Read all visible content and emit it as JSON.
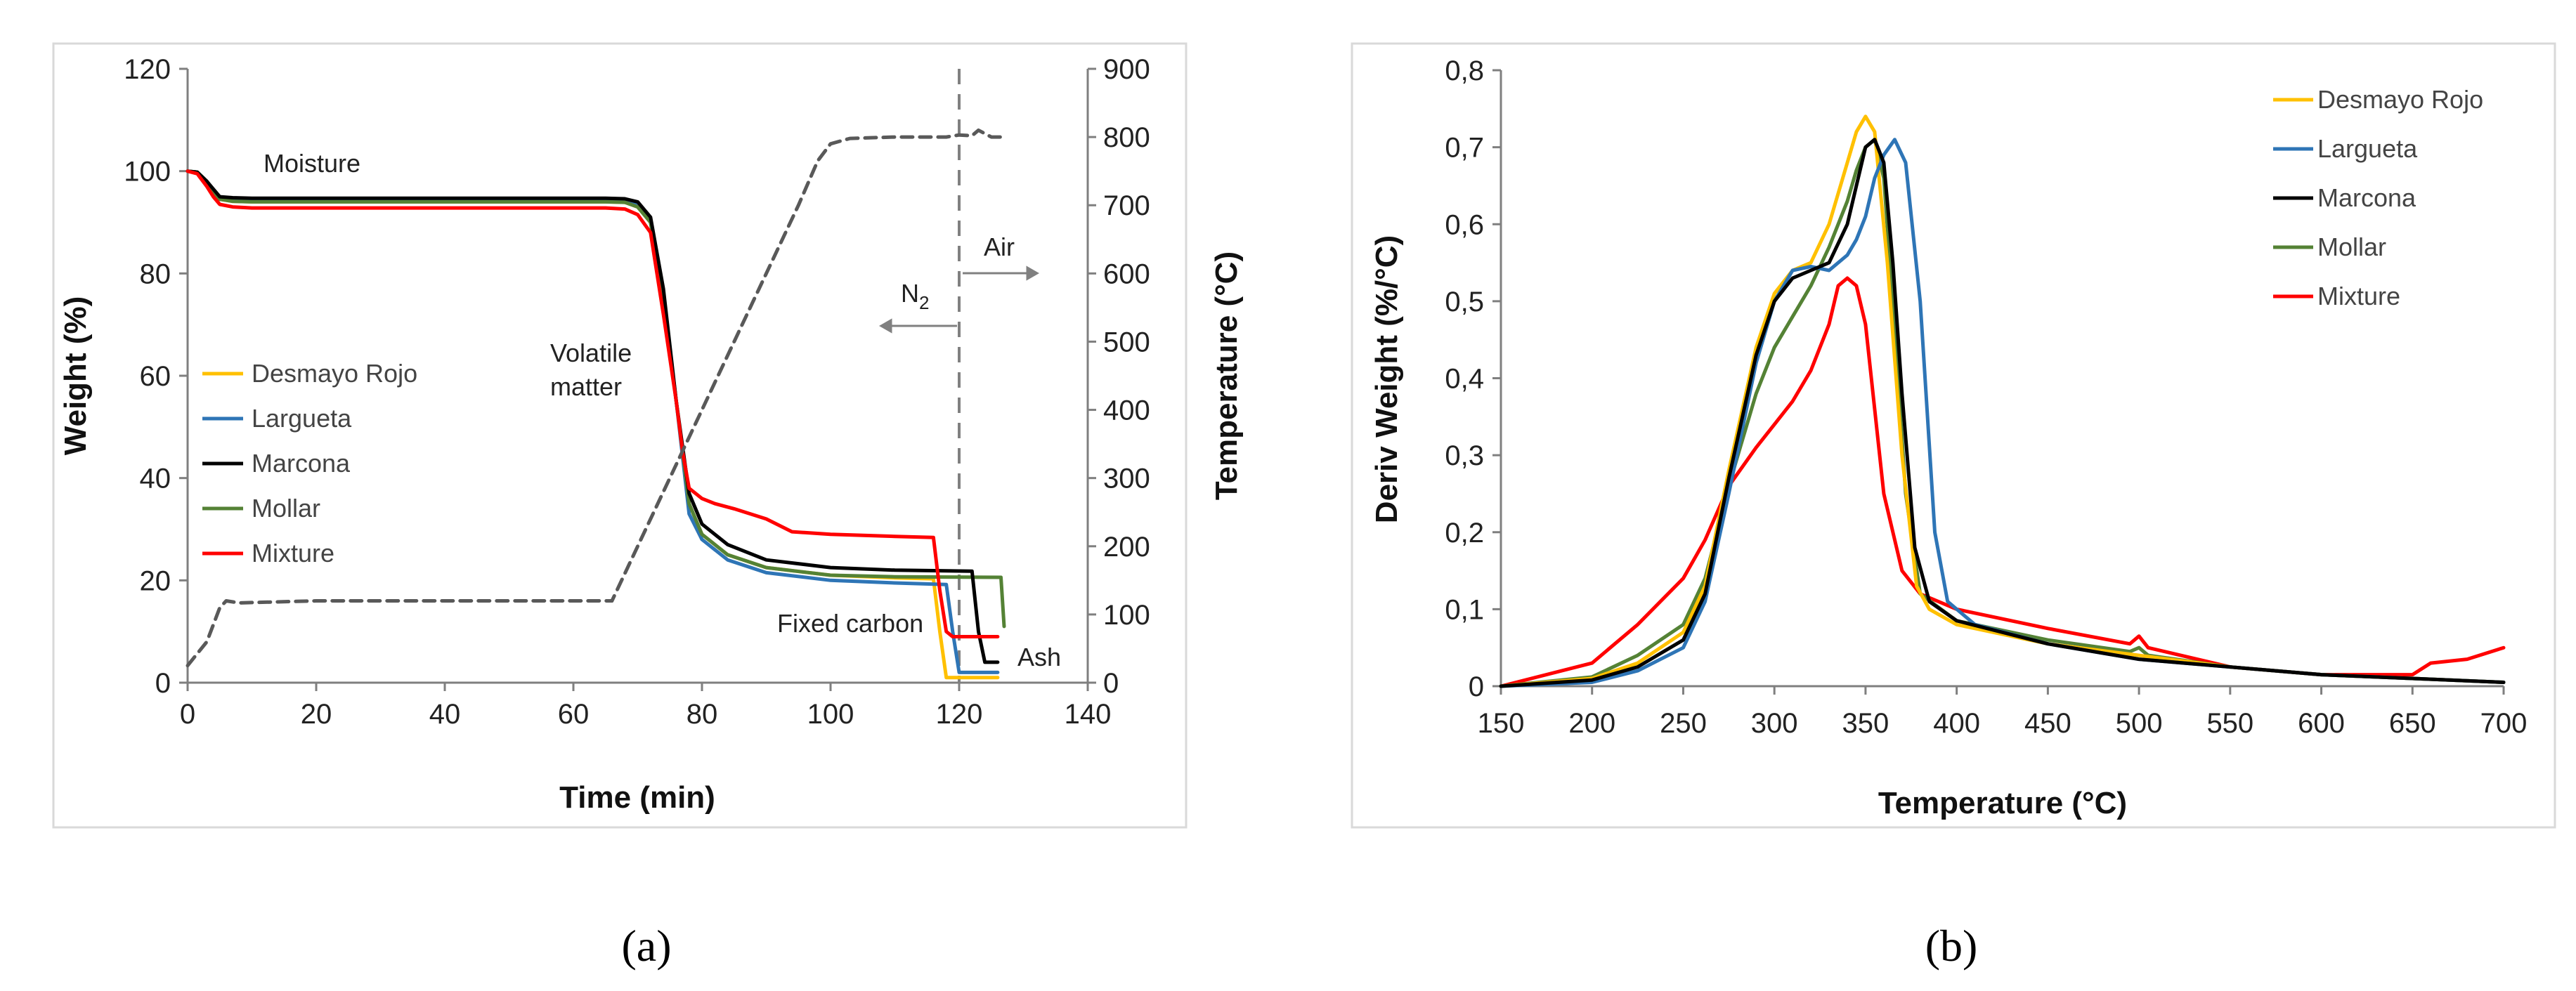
{
  "chart_data": [
    {
      "panel": "a",
      "type": "line",
      "panel_label": "(a)",
      "xlabel": "Time (min)",
      "ylabel": "Weight (%)",
      "y2label": "Temperature (°C)",
      "xlim": [
        0,
        140
      ],
      "ylim": [
        0,
        120
      ],
      "y2lim": [
        0,
        900
      ],
      "xticks": [
        0,
        20,
        40,
        60,
        80,
        100,
        120,
        140
      ],
      "yticks": [
        0,
        20,
        40,
        60,
        80,
        100,
        120
      ],
      "y2ticks": [
        0,
        100,
        200,
        300,
        400,
        500,
        600,
        700,
        800,
        900
      ],
      "legend_position": "center-left",
      "annotations": {
        "moisture": "Moisture",
        "volatile_line1": "Volatile",
        "volatile_line2": "matter",
        "fixed_carbon": "Fixed carbon",
        "ash": "Ash",
        "air": "Air",
        "n2": "N",
        "n2_sub": "2"
      },
      "gas_switch_time": 120,
      "series": [
        {
          "name": "Desmayo Rojo",
          "color": "#FFC000",
          "x": [
            0,
            1.5,
            3,
            4,
            5,
            7,
            10,
            40,
            65,
            68,
            70,
            72,
            74,
            76,
            78,
            80,
            84,
            90,
            100,
            110,
            116,
            117,
            118,
            126
          ],
          "y": [
            100,
            99.8,
            98,
            96,
            94.5,
            94.1,
            94,
            94,
            94,
            93.9,
            93,
            90,
            75,
            55,
            35,
            29,
            25,
            22.5,
            21,
            20.5,
            20.3,
            10,
            1,
            1
          ]
        },
        {
          "name": "Largueta",
          "color": "#2E75B6",
          "x": [
            0,
            1.5,
            3,
            4,
            5,
            7,
            10,
            40,
            65,
            68,
            70,
            72,
            74,
            76,
            78,
            80,
            84,
            90,
            100,
            110,
            118,
            119,
            120,
            126
          ],
          "y": [
            100,
            99.8,
            98,
            96,
            94.5,
            94.3,
            94.2,
            94.2,
            94.2,
            94.1,
            93.3,
            90,
            75,
            55,
            33,
            28,
            24,
            21.5,
            20,
            19.5,
            19.2,
            10,
            2,
            2
          ]
        },
        {
          "name": "Marcona",
          "color": "#000000",
          "x": [
            0,
            1.5,
            3,
            4,
            5,
            7,
            10,
            40,
            65,
            68,
            70,
            72,
            74,
            76,
            78,
            80,
            84,
            90,
            100,
            110,
            122,
            123,
            124,
            126
          ],
          "y": [
            100,
            99.8,
            98,
            96.5,
            95,
            94.8,
            94.7,
            94.7,
            94.7,
            94.6,
            94,
            91,
            77,
            55,
            37,
            31,
            27,
            24,
            22.5,
            22,
            21.8,
            10,
            4,
            4
          ]
        },
        {
          "name": "Mollar",
          "color": "#548235",
          "x": [
            0,
            1.5,
            3,
            4,
            5,
            7,
            10,
            40,
            65,
            68,
            70,
            72,
            74,
            76,
            78,
            80,
            84,
            90,
            100,
            110,
            126.5,
            127
          ],
          "y": [
            100,
            99.8,
            98,
            96,
            94.5,
            94.1,
            94,
            94,
            94,
            93.9,
            93,
            90,
            75,
            55,
            35,
            29,
            25,
            22.5,
            21,
            20.7,
            20.6,
            11
          ]
        },
        {
          "name": "Mixture",
          "color": "#FF0000",
          "x": [
            0,
            1.5,
            3,
            4,
            5,
            7,
            10,
            40,
            65,
            68,
            70,
            72,
            74,
            76,
            77,
            78,
            80,
            82,
            85,
            90,
            94,
            100,
            110,
            116,
            117,
            118,
            119,
            126
          ],
          "y": [
            100,
            99.5,
            97,
            95,
            93.5,
            93,
            92.8,
            92.8,
            92.8,
            92.6,
            91.5,
            88,
            72,
            55,
            45,
            38,
            36,
            35,
            34,
            32,
            29.5,
            29,
            28.6,
            28.4,
            18,
            10,
            9,
            9
          ]
        },
        {
          "name": "Temperature",
          "color": "#595959",
          "dashed": true,
          "axis": "right",
          "x": [
            0,
            3,
            5,
            6,
            8,
            20,
            40,
            60,
            66,
            80,
            95,
            98,
            100,
            103,
            110,
            118,
            120,
            122,
            123,
            125,
            127
          ],
          "y": [
            25,
            60,
            110,
            120,
            117,
            120,
            120,
            120,
            120,
            400,
            700,
            765,
            790,
            798,
            800,
            800,
            803,
            802,
            810,
            800,
            800
          ]
        }
      ]
    },
    {
      "panel": "b",
      "type": "line",
      "panel_label": "(b)",
      "xlabel": "Temperature (°C)",
      "ylabel": "Deriv Weight (%/°C)",
      "xlim": [
        150,
        700
      ],
      "ylim": [
        0,
        0.8
      ],
      "xticks": [
        150,
        200,
        250,
        300,
        350,
        400,
        450,
        500,
        550,
        600,
        650,
        700
      ],
      "yticks": [
        "0",
        "0,1",
        "0,2",
        "0,3",
        "0,4",
        "0,5",
        "0,6",
        "0,7",
        "0,8"
      ],
      "legend_position": "top-right",
      "series": [
        {
          "name": "Desmayo Rojo",
          "color": "#FFC000",
          "x": [
            150,
            200,
            225,
            250,
            262,
            275,
            290,
            300,
            310,
            320,
            330,
            340,
            345,
            350,
            355,
            362,
            370,
            378,
            385,
            400,
            450,
            500,
            550,
            600,
            650,
            700
          ],
          "y": [
            0,
            0.01,
            0.03,
            0.07,
            0.13,
            0.28,
            0.44,
            0.51,
            0.54,
            0.55,
            0.6,
            0.68,
            0.72,
            0.74,
            0.72,
            0.55,
            0.3,
            0.13,
            0.1,
            0.08,
            0.055,
            0.04,
            0.025,
            0.015,
            0.01,
            0.005
          ]
        },
        {
          "name": "Largueta",
          "color": "#2E75B6",
          "x": [
            150,
            200,
            225,
            250,
            262,
            275,
            290,
            300,
            310,
            320,
            330,
            340,
            345,
            350,
            355,
            360,
            366,
            372,
            380,
            388,
            395,
            410,
            450,
            500,
            550,
            600,
            650,
            700
          ],
          "y": [
            0,
            0.005,
            0.02,
            0.05,
            0.11,
            0.25,
            0.42,
            0.5,
            0.54,
            0.545,
            0.54,
            0.56,
            0.58,
            0.61,
            0.66,
            0.69,
            0.71,
            0.68,
            0.5,
            0.2,
            0.11,
            0.08,
            0.055,
            0.035,
            0.025,
            0.015,
            0.01,
            0.005
          ]
        },
        {
          "name": "Marcona",
          "color": "#000000",
          "x": [
            150,
            200,
            225,
            250,
            262,
            275,
            290,
            300,
            310,
            320,
            330,
            340,
            345,
            350,
            355,
            360,
            365,
            370,
            377,
            385,
            400,
            450,
            500,
            550,
            600,
            650,
            700
          ],
          "y": [
            0,
            0.008,
            0.025,
            0.06,
            0.12,
            0.27,
            0.43,
            0.5,
            0.53,
            0.54,
            0.55,
            0.6,
            0.65,
            0.7,
            0.71,
            0.68,
            0.55,
            0.38,
            0.18,
            0.11,
            0.085,
            0.055,
            0.035,
            0.025,
            0.015,
            0.01,
            0.005
          ]
        },
        {
          "name": "Mollar",
          "color": "#548235",
          "x": [
            150,
            200,
            225,
            250,
            262,
            275,
            290,
            300,
            310,
            320,
            330,
            340,
            345,
            350,
            355,
            360,
            365,
            372,
            380,
            400,
            450,
            495,
            500,
            505,
            550,
            600,
            650,
            700
          ],
          "y": [
            0,
            0.012,
            0.04,
            0.08,
            0.14,
            0.26,
            0.38,
            0.44,
            0.48,
            0.52,
            0.57,
            0.63,
            0.67,
            0.7,
            0.71,
            0.66,
            0.5,
            0.25,
            0.12,
            0.085,
            0.06,
            0.045,
            0.05,
            0.04,
            0.025,
            0.015,
            0.01,
            0.005
          ]
        },
        {
          "name": "Mixture",
          "color": "#FF0000",
          "x": [
            150,
            200,
            225,
            250,
            262,
            275,
            290,
            300,
            310,
            320,
            330,
            335,
            340,
            345,
            350,
            355,
            360,
            370,
            380,
            400,
            450,
            495,
            500,
            505,
            550,
            600,
            650,
            660,
            680,
            700
          ],
          "y": [
            0,
            0.03,
            0.08,
            0.14,
            0.19,
            0.26,
            0.31,
            0.34,
            0.37,
            0.41,
            0.47,
            0.52,
            0.53,
            0.52,
            0.47,
            0.36,
            0.25,
            0.15,
            0.12,
            0.1,
            0.075,
            0.055,
            0.065,
            0.05,
            0.025,
            0.015,
            0.015,
            0.03,
            0.035,
            0.05
          ]
        }
      ]
    }
  ]
}
